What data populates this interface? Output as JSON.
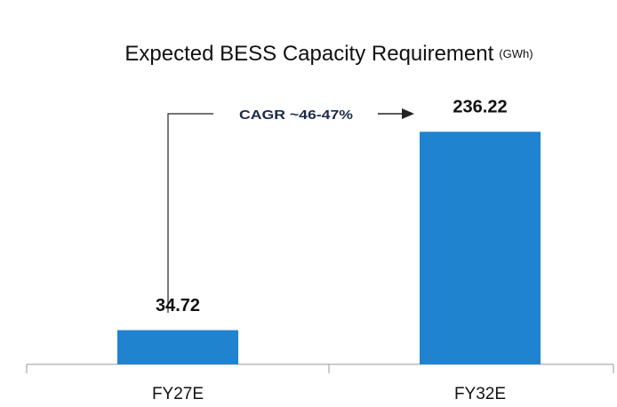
{
  "chart_data": {
    "type": "bar",
    "title": "Expected BESS Capacity Requirement",
    "title_unit": "(GWh)",
    "categories": [
      "FY27E",
      "FY32E"
    ],
    "values": [
      34.72,
      236.22
    ],
    "color": "#1f83d0",
    "annotation": "CAGR ~46-47%",
    "ylim": [
      0,
      250
    ]
  }
}
